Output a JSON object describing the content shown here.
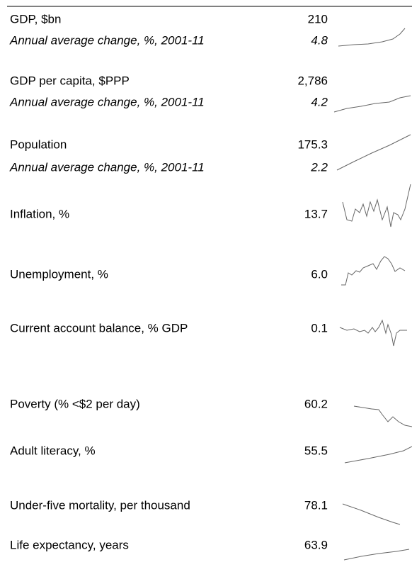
{
  "rows": [
    {
      "label": "GDP, $bn",
      "value": "210"
    },
    {
      "label": "Annual average change, %, 2001-11",
      "value": "4.8"
    },
    {
      "label": "GDP per capita, $PPP",
      "value": "2,786"
    },
    {
      "label": "Annual average change, %, 2001-11",
      "value": "4.2"
    },
    {
      "label": "Population",
      "value": "175.3"
    },
    {
      "label": "Annual average change, %, 2001-11",
      "value": "2.2"
    },
    {
      "label": "Inflation, %",
      "value": "13.7"
    },
    {
      "label": "Unemployment, %",
      "value": "6.0"
    },
    {
      "label": "Current account balance, % GDP",
      "value": "0.1"
    },
    {
      "label": "Poverty (% <$2 per day)",
      "value": "60.2"
    },
    {
      "label": "Adult literacy, %",
      "value": "55.5"
    },
    {
      "label": "Under-five mortality, per thousand",
      "value": "78.1"
    },
    {
      "label": "Life expectancy, years",
      "value": "63.9"
    }
  ]
}
